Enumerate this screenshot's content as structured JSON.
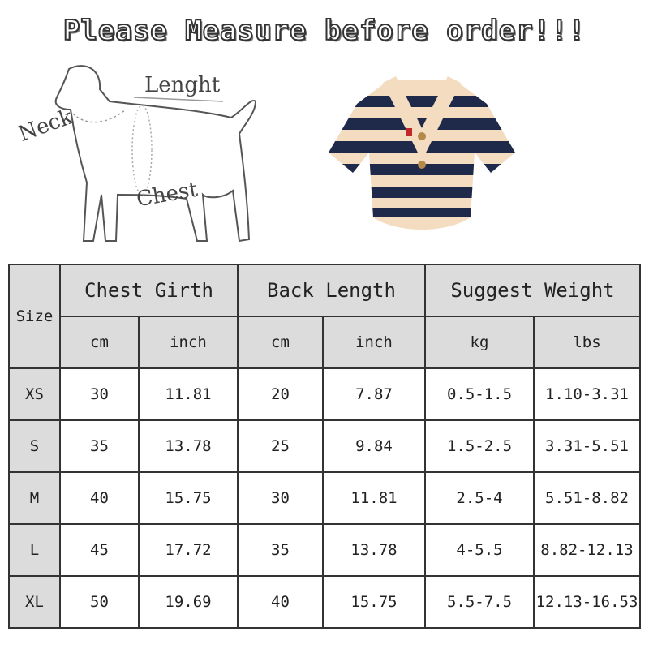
{
  "title": "Please Measure before order!!!",
  "diagram_labels": {
    "neck": "Neck",
    "length": "Lenght",
    "chest": "Chest"
  },
  "table": {
    "size_header": "Size",
    "groups": [
      "Chest Girth",
      "Back Length",
      "Suggest Weight"
    ],
    "units": [
      "cm",
      "inch",
      "cm",
      "inch",
      "kg",
      "lbs"
    ],
    "rows": [
      {
        "size": "XS",
        "values": [
          "30",
          "11.81",
          "20",
          "7.87",
          "0.5-1.5",
          "1.10-3.31"
        ]
      },
      {
        "size": "S",
        "values": [
          "35",
          "13.78",
          "25",
          "9.84",
          "1.5-2.5",
          "3.31-5.51"
        ]
      },
      {
        "size": "M",
        "values": [
          "40",
          "15.75",
          "30",
          "11.81",
          "2.5-4",
          "5.51-8.82"
        ]
      },
      {
        "size": "L",
        "values": [
          "45",
          "17.72",
          "35",
          "13.78",
          "4-5.5",
          "8.82-12.13"
        ]
      },
      {
        "size": "XL",
        "values": [
          "50",
          "19.69",
          "40",
          "15.75",
          "5.5-7.5",
          "12.13-16.53"
        ]
      }
    ]
  },
  "colors": {
    "header_bg": "#dcdcdc",
    "sweater_navy": "#1f2a4a",
    "sweater_cream": "#f3dcc0"
  }
}
